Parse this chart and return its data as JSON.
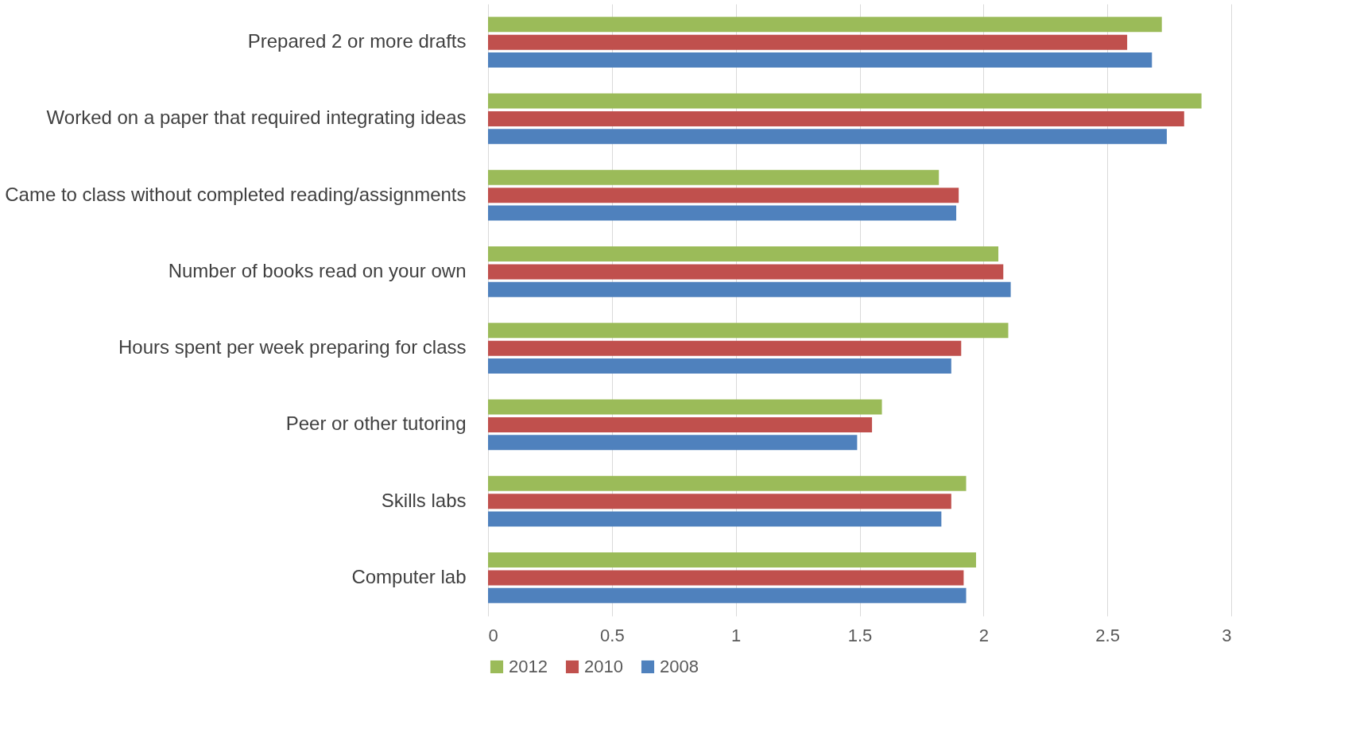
{
  "chart_data": {
    "type": "bar",
    "orientation": "horizontal",
    "categories": [
      "Prepared 2 or more drafts",
      "Worked on a paper that required integrating ideas",
      "Came to class without completed reading/assignments",
      "Number of books read on your own",
      "Hours spent per week preparing for class",
      "Peer or other tutoring",
      "Skills labs",
      "Computer lab"
    ],
    "series": [
      {
        "name": "2012",
        "color": "#9bbb59",
        "values": [
          2.72,
          2.88,
          1.82,
          2.06,
          2.1,
          1.59,
          1.93,
          1.97
        ]
      },
      {
        "name": "2010",
        "color": "#c0504d",
        "values": [
          2.58,
          2.81,
          1.9,
          2.08,
          1.91,
          1.55,
          1.87,
          1.92
        ]
      },
      {
        "name": "2008",
        "color": "#4f81bd",
        "values": [
          2.68,
          2.74,
          1.89,
          2.11,
          1.87,
          1.49,
          1.83,
          1.93
        ]
      }
    ],
    "xlim": [
      0,
      3
    ],
    "xticks": [
      0,
      0.5,
      1,
      1.5,
      2,
      2.5,
      3
    ],
    "grid": "x",
    "legend": "bottom"
  }
}
